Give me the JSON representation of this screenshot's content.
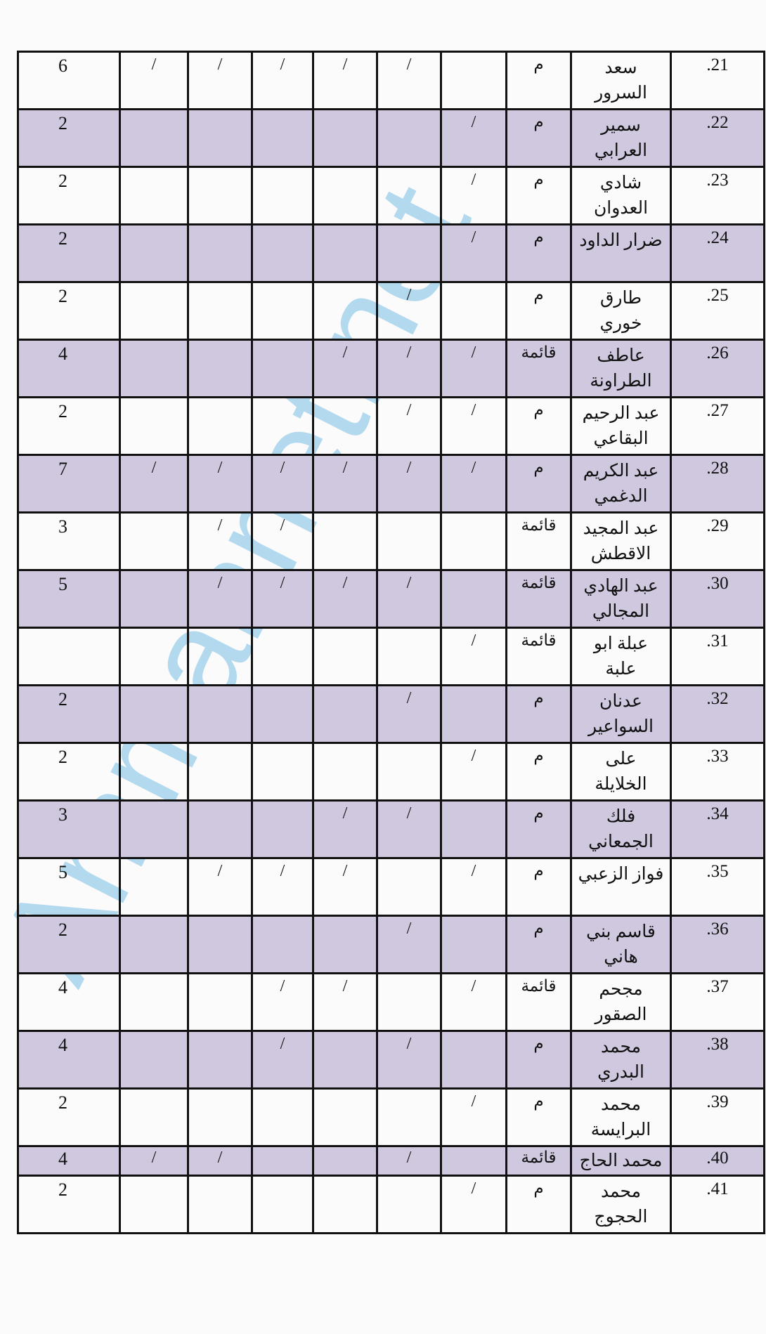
{
  "watermark": "Ammannet.net",
  "table": {
    "rows": [
      {
        "number": "21.",
        "name": "سعد السرور",
        "type": "م",
        "marks": [
          null,
          "/",
          "/",
          "/",
          "/",
          "/"
        ],
        "total": "6"
      },
      {
        "number": "22.",
        "name": "سمير العرابي",
        "type": "م",
        "marks": [
          "/",
          null,
          null,
          null,
          null,
          null
        ],
        "total": "2"
      },
      {
        "number": "23.",
        "name": "شادي العدوان",
        "type": "م",
        "marks": [
          "/",
          null,
          null,
          null,
          null,
          null
        ],
        "total": "2"
      },
      {
        "number": "24.",
        "name": "ضرار الداود",
        "type": "م",
        "marks": [
          "/",
          null,
          null,
          null,
          null,
          null
        ],
        "total": "2"
      },
      {
        "number": "25.",
        "name": "طارق خوري",
        "type": "م",
        "marks": [
          null,
          "/",
          null,
          null,
          null,
          null
        ],
        "total": "2"
      },
      {
        "number": "26.",
        "name": "عاطف الطراونة",
        "type": "قائمة",
        "marks": [
          "/",
          "/",
          "/",
          null,
          null,
          null
        ],
        "total": "4"
      },
      {
        "number": "27.",
        "name": "عبد الرحيم البقاعي",
        "type": "م",
        "marks": [
          "/",
          "/",
          null,
          null,
          null,
          null
        ],
        "total": "2"
      },
      {
        "number": "28.",
        "name": "عبد الكريم الدغمي",
        "type": "م",
        "marks": [
          "/",
          "/",
          "/",
          "/",
          "/",
          "/"
        ],
        "total": "7"
      },
      {
        "number": "29.",
        "name": "عبد المجيد الاقطش",
        "type": "قائمة",
        "marks": [
          null,
          null,
          null,
          "/",
          "/",
          null
        ],
        "total": "3"
      },
      {
        "number": "30.",
        "name": "عبد الهادي المجالي",
        "type": "قائمة",
        "marks": [
          null,
          "/",
          "/",
          "/",
          "/",
          null
        ],
        "total": "5"
      },
      {
        "number": "31.",
        "name": "عبلة ابو علبة",
        "type": "قائمة",
        "marks": [
          "/",
          null,
          null,
          null,
          null,
          null
        ],
        "total": null
      },
      {
        "number": "32.",
        "name": "عدنان السواعير",
        "type": "م",
        "marks": [
          null,
          "/",
          null,
          null,
          null,
          null
        ],
        "total": "2"
      },
      {
        "number": "33.",
        "name": "على الخلايلة",
        "type": "م",
        "marks": [
          "/",
          null,
          null,
          null,
          null,
          null
        ],
        "total": "2"
      },
      {
        "number": "34.",
        "name": "فلك الجمعاني",
        "type": "م",
        "marks": [
          null,
          "/",
          "/",
          null,
          null,
          null
        ],
        "total": "3"
      },
      {
        "number": "35.",
        "name": "فواز الزعبي",
        "type": "م",
        "marks": [
          "/",
          null,
          "/",
          "/",
          "/",
          null
        ],
        "total": "5"
      },
      {
        "number": "36.",
        "name": "قاسم بني هاني",
        "type": "م",
        "marks": [
          null,
          "/",
          null,
          null,
          null,
          null
        ],
        "total": "2"
      },
      {
        "number": "37.",
        "name": "مجحم الصقور",
        "type": "قائمة",
        "marks": [
          "/",
          null,
          "/",
          "/",
          null,
          null
        ],
        "total": "4"
      },
      {
        "number": "38.",
        "name": "محمد البدري",
        "type": "م",
        "marks": [
          null,
          "/",
          null,
          "/",
          null,
          null
        ],
        "total": "4"
      },
      {
        "number": "39.",
        "name": "محمد البرايسة",
        "type": "م",
        "marks": [
          "/",
          null,
          null,
          null,
          null,
          null
        ],
        "total": "2"
      },
      {
        "number": "40.",
        "name": "محمد الحاج",
        "type": "قائمة",
        "marks": [
          null,
          "/",
          null,
          null,
          "/",
          "/"
        ],
        "total": "4"
      },
      {
        "number": "41.",
        "name": "محمد الحجوج",
        "type": "م",
        "marks": [
          "/",
          null,
          null,
          null,
          null,
          null
        ],
        "total": "2"
      }
    ]
  }
}
